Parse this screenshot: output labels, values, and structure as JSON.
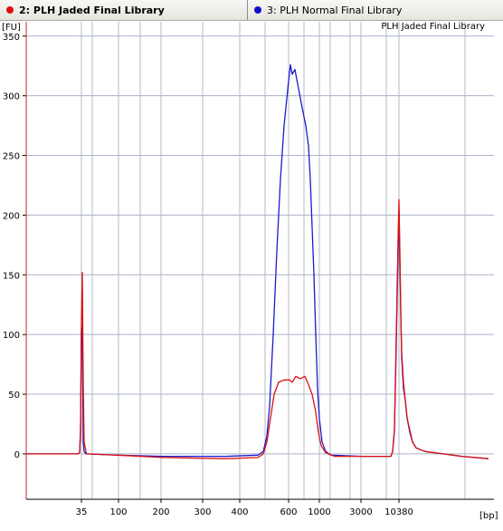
{
  "tabs": [
    {
      "label": "2: PLH Jaded Final Library",
      "color": "#dd1111",
      "active": true
    },
    {
      "label": "3: PLH Normal Final Library",
      "color": "#1111cc",
      "active": false
    }
  ],
  "chart_data": {
    "type": "line",
    "title": "PLH Jaded Final Library",
    "ylabel": "[FU]",
    "xlabel": "[bp]",
    "ylim": [
      -38,
      362
    ],
    "y_ticks": [
      0,
      50,
      100,
      150,
      200,
      250,
      300,
      350
    ],
    "x_tick_labels": [
      {
        "label": "35",
        "time": 90
      },
      {
        "label": "100",
        "time": 131
      },
      {
        "label": "200",
        "time": 178
      },
      {
        "label": "300",
        "time": 224
      },
      {
        "label": "400",
        "time": 265
      },
      {
        "label": "600",
        "time": 319
      },
      {
        "label": "1000",
        "time": 353
      },
      {
        "label": "3000",
        "time": 399
      },
      {
        "label": "10380",
        "time": 441
      }
    ],
    "x_gridlines": [
      90,
      102,
      131,
      155,
      178,
      224,
      265,
      293,
      319,
      336,
      353,
      365,
      387,
      399,
      427,
      441,
      514
    ],
    "x_range": [
      29,
      541
    ],
    "grid": true,
    "series": [
      {
        "name": "3: PLH Normal Final Library",
        "color": "#1a1ad0",
        "points": [
          [
            29,
            0
          ],
          [
            86,
            0
          ],
          [
            88,
            1
          ],
          [
            89,
            20
          ],
          [
            90,
            105
          ],
          [
            91,
            108
          ],
          [
            92,
            10
          ],
          [
            93,
            2
          ],
          [
            95,
            0
          ],
          [
            130,
            -1
          ],
          [
            180,
            -2
          ],
          [
            250,
            -2
          ],
          [
            285,
            -1
          ],
          [
            291,
            2
          ],
          [
            295,
            15
          ],
          [
            298,
            40
          ],
          [
            302,
            100
          ],
          [
            306,
            170
          ],
          [
            310,
            230
          ],
          [
            314,
            275
          ],
          [
            318,
            305
          ],
          [
            321,
            326
          ],
          [
            323,
            318
          ],
          [
            326,
            322
          ],
          [
            330,
            306
          ],
          [
            334,
            290
          ],
          [
            338,
            275
          ],
          [
            341,
            258
          ],
          [
            343,
            230
          ],
          [
            345,
            190
          ],
          [
            347,
            150
          ],
          [
            349,
            100
          ],
          [
            351,
            55
          ],
          [
            353,
            30
          ],
          [
            356,
            10
          ],
          [
            360,
            2
          ],
          [
            366,
            -1
          ],
          [
            400,
            -2
          ],
          [
            432,
            -2
          ],
          [
            434,
            2
          ],
          [
            436,
            20
          ],
          [
            438,
            90
          ],
          [
            440,
            170
          ],
          [
            441,
            202
          ],
          [
            442,
            160
          ],
          [
            443,
            118
          ],
          [
            444,
            80
          ],
          [
            446,
            55
          ],
          [
            448,
            45
          ],
          [
            450,
            30
          ],
          [
            453,
            18
          ],
          [
            456,
            10
          ],
          [
            460,
            5
          ],
          [
            470,
            2
          ],
          [
            490,
            0
          ],
          [
            510,
            -2
          ],
          [
            540,
            -4
          ]
        ]
      },
      {
        "name": "2: PLH Jaded Final Library",
        "color": "#dd1111",
        "points": [
          [
            29,
            0
          ],
          [
            86,
            0
          ],
          [
            88,
            1
          ],
          [
            89,
            20
          ],
          [
            90,
            110
          ],
          [
            91,
            152
          ],
          [
            92,
            60
          ],
          [
            93,
            10
          ],
          [
            95,
            2
          ],
          [
            96,
            0
          ],
          [
            130,
            -1
          ],
          [
            180,
            -3
          ],
          [
            250,
            -4
          ],
          [
            285,
            -3
          ],
          [
            291,
            0
          ],
          [
            295,
            10
          ],
          [
            299,
            30
          ],
          [
            303,
            50
          ],
          [
            308,
            60
          ],
          [
            314,
            62
          ],
          [
            320,
            62
          ],
          [
            323,
            60
          ],
          [
            327,
            65
          ],
          [
            332,
            63
          ],
          [
            337,
            65
          ],
          [
            341,
            58
          ],
          [
            345,
            50
          ],
          [
            349,
            35
          ],
          [
            352,
            18
          ],
          [
            355,
            7
          ],
          [
            360,
            1
          ],
          [
            370,
            -2
          ],
          [
            400,
            -2
          ],
          [
            432,
            -2
          ],
          [
            434,
            2
          ],
          [
            436,
            20
          ],
          [
            438,
            100
          ],
          [
            440,
            180
          ],
          [
            441,
            213
          ],
          [
            442,
            170
          ],
          [
            443,
            120
          ],
          [
            444,
            85
          ],
          [
            446,
            60
          ],
          [
            448,
            45
          ],
          [
            450,
            30
          ],
          [
            453,
            20
          ],
          [
            456,
            10
          ],
          [
            460,
            5
          ],
          [
            470,
            2
          ],
          [
            490,
            0
          ],
          [
            510,
            -2
          ],
          [
            540,
            -4
          ]
        ]
      }
    ]
  }
}
